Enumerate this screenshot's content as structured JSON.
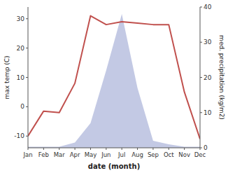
{
  "chart_data": {
    "type": "line",
    "xlabel": "date (month)",
    "ylabel": "max temp (C)",
    "y2label": "med. precipitation (kg/m2)",
    "categories": [
      "Jan",
      "Feb",
      "Mar",
      "Apr",
      "May",
      "Jun",
      "Jul",
      "Aug",
      "Sep",
      "Oct",
      "Nov",
      "Dec"
    ],
    "series": [
      {
        "type": "area",
        "axis": "y2",
        "color": "#b8bfdf",
        "values": [
          0.3,
          0.3,
          0.3,
          1.5,
          7,
          22,
          38,
          17,
          2,
          1,
          0.3,
          0.3
        ]
      },
      {
        "type": "line",
        "color": "#c0504d",
        "values": [
          -10,
          -1.5,
          -2,
          8,
          31,
          28,
          29,
          28.5,
          28,
          28,
          5,
          -11
        ]
      }
    ],
    "ylim": [
      -14,
      34
    ],
    "yticks": [
      -10,
      0,
      10,
      20,
      30
    ],
    "y2lim": [
      0,
      40
    ],
    "y2ticks": [
      0,
      10,
      20,
      30,
      40
    ],
    "grid": false
  }
}
